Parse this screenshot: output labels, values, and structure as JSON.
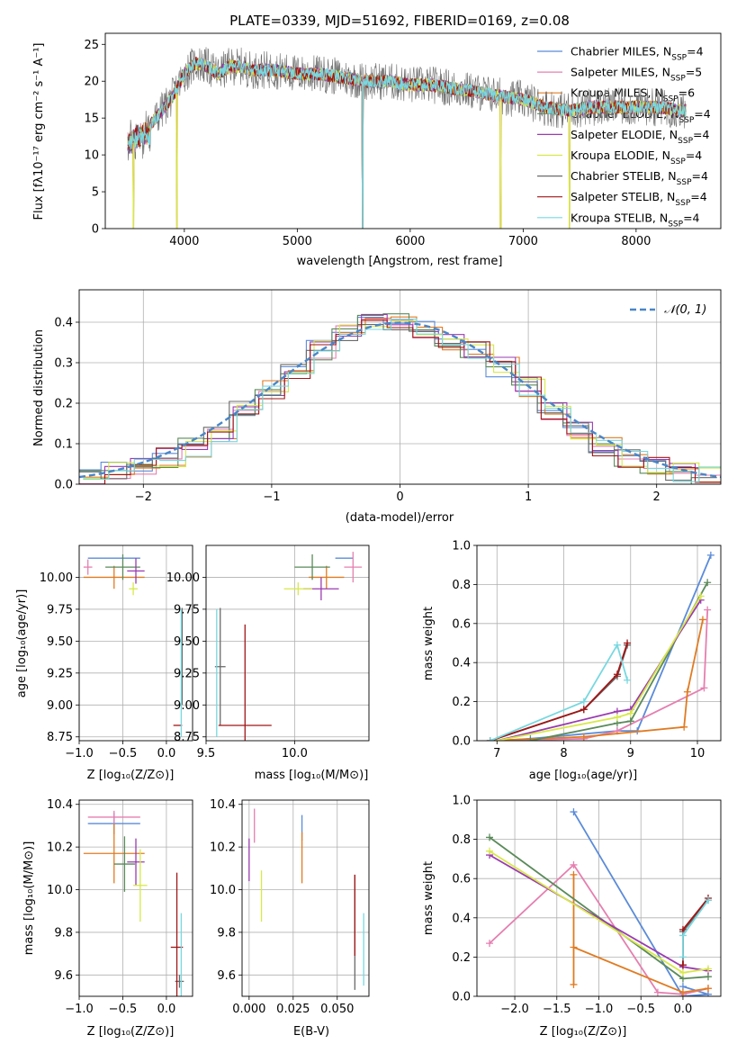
{
  "colors": {
    "chabrier_miles": "#5b8bd9",
    "salpeter_miles": "#e57fb0",
    "kroupa_miles": "#e07b22",
    "chabrier_elodie": "#5a8a5a",
    "salpeter_elodie": "#9a3bb0",
    "kroupa_elodie": "#d7e84a",
    "chabrier_stelib": "#6a6a6a",
    "salpeter_stelib": "#a01616",
    "kroupa_stelib": "#78d8e0",
    "model_mean": "#4a86c8"
  },
  "chart_data": [
    {
      "type": "line",
      "title": "PLATE=0339, MJD=51692, FIBERID=0169, z=0.08",
      "xlabel": "wavelength [Angstrom, rest frame]",
      "ylabel": "Flux [fλ10⁻¹⁷ erg cm⁻² s⁻¹ A⁻¹]",
      "xlim": [
        3300,
        8750
      ],
      "ylim": [
        0,
        26.5
      ],
      "xticks": [
        4000,
        5000,
        6000,
        7000,
        8000
      ],
      "yticks": [
        0,
        5,
        10,
        15,
        20,
        25
      ],
      "grid": false,
      "legend_position": "right",
      "legend": [
        "Chabrier MILES, N_SSP=4",
        "Salpeter MILES, N_SSP=5",
        "Kroupa MILES, N_SSP=6",
        "Chabrier ELODIE, N_SSP=4",
        "Salpeter ELODIE, N_SSP=4",
        "Kroupa ELODIE, N_SSP=4",
        "Chabrier STELIB, N_SSP=4",
        "Salpeter STELIB, N_SSP=4",
        "Kroupa STELIB, N_SSP=4"
      ],
      "spectrum_continuum": {
        "x": [
          3500,
          3600,
          3700,
          3800,
          3900,
          4000,
          4100,
          4200,
          4300,
          4400,
          4500,
          4600,
          4800,
          5000,
          5200,
          5400,
          5600,
          5800,
          6000,
          6200,
          6400,
          6600,
          6800,
          7000,
          7200,
          7400,
          7600,
          7800,
          8000,
          8200,
          8400
        ],
        "y": [
          12.5,
          13.5,
          14.0,
          16.0,
          18.0,
          21.0,
          22.5,
          22.0,
          21.0,
          22.0,
          22.0,
          21.5,
          21.5,
          21.0,
          21.0,
          20.5,
          20.0,
          20.0,
          19.5,
          19.5,
          19.0,
          18.5,
          18.0,
          17.5,
          16.5,
          16.0,
          16.5,
          16.5,
          16.5,
          16.5,
          16.0
        ]
      },
      "absorption_features": [
        {
          "x": 3550,
          "y": 0
        },
        {
          "x": 3935,
          "y": 0
        },
        {
          "x": 5577,
          "y": 0
        },
        {
          "x": 6800,
          "y": 0
        },
        {
          "x": 7410,
          "y": 0
        }
      ]
    },
    {
      "type": "line",
      "title": "",
      "xlabel": "(data-model)/error",
      "ylabel": "Normed distribution",
      "xlim": [
        -2.5,
        2.5
      ],
      "ylim": [
        0,
        0.48
      ],
      "xticks": [
        -2,
        -1,
        0,
        1,
        2
      ],
      "yticks": [
        0.0,
        0.1,
        0.2,
        0.3,
        0.4
      ],
      "grid": true,
      "legend": [
        "𝒩(0, 1)"
      ],
      "legend_position": "top-right",
      "reference_curve": "normal(0,1) density",
      "histograms_step_x": [
        -2.5,
        -2.3,
        -2.1,
        -1.9,
        -1.7,
        -1.5,
        -1.3,
        -1.1,
        -0.9,
        -0.7,
        -0.5,
        -0.3,
        -0.1,
        0.1,
        0.3,
        0.5,
        0.7,
        0.9,
        1.1,
        1.3,
        1.5,
        1.7,
        1.9,
        2.1,
        2.3,
        2.5
      ],
      "histograms_base_y": [
        0.02,
        0.03,
        0.045,
        0.065,
        0.09,
        0.13,
        0.18,
        0.235,
        0.28,
        0.33,
        0.37,
        0.395,
        0.4,
        0.38,
        0.35,
        0.33,
        0.29,
        0.24,
        0.18,
        0.13,
        0.09,
        0.065,
        0.045,
        0.03,
        0.02
      ]
    },
    {
      "type": "scatter",
      "title": "",
      "xlabel": "Z [log₁₀(Z/Z⊙)]",
      "ylabel": "age  [log₁₀(age/yr)]",
      "xlim": [
        -1.0,
        0.3
      ],
      "ylim": [
        8.72,
        10.25
      ],
      "xticks": [
        -1.0,
        -0.5,
        0.0
      ],
      "yticks": [
        8.75,
        9.0,
        9.25,
        9.5,
        9.75,
        10.0
      ],
      "grid": true,
      "points": [
        {
          "series": "chabrier_miles",
          "x": -0.6,
          "xerr": 0.3,
          "y": 10.15,
          "yerr": 0.0
        },
        {
          "series": "salpeter_miles",
          "x": -0.9,
          "xerr": 0.05,
          "y": 10.08,
          "yerr": 0.06
        },
        {
          "series": "kroupa_miles",
          "x": -0.6,
          "xerr": 0.35,
          "y": 10.0,
          "yerr": 0.09
        },
        {
          "series": "chabrier_elodie",
          "x": -0.5,
          "xerr": 0.2,
          "y": 10.08,
          "yerr": 0.1
        },
        {
          "series": "salpeter_elodie",
          "x": -0.35,
          "xerr": 0.1,
          "y": 10.05,
          "yerr": 0.1
        },
        {
          "series": "kroupa_elodie",
          "x": -0.38,
          "xerr": 0.05,
          "y": 9.91,
          "yerr": 0.05
        },
        {
          "series": "chabrier_stelib",
          "x": 0.18,
          "xerr": 0.0,
          "y": 9.38,
          "yerr": 0.38
        },
        {
          "series": "salpeter_stelib",
          "x": 0.13,
          "xerr": 0.05,
          "y": 8.84,
          "yerr": 0.0
        },
        {
          "series": "kroupa_stelib",
          "x": 0.17,
          "xerr": 0.0,
          "y": 9.25,
          "yerr": 0.5
        }
      ]
    },
    {
      "type": "scatter",
      "title": "",
      "xlabel": "mass [log₁₀(M/M⊙)]",
      "ylabel": "",
      "xlim": [
        9.5,
        10.42
      ],
      "ylim": [
        8.72,
        10.25
      ],
      "xticks": [
        9.5,
        10.0
      ],
      "yticks": [
        8.75,
        9.0,
        9.25,
        9.5,
        9.75,
        10.0
      ],
      "grid": true,
      "points": [
        {
          "series": "chabrier_miles",
          "x": 10.28,
          "xerr": 0.05,
          "y": 10.15,
          "yerr": 0.0
        },
        {
          "series": "salpeter_miles",
          "x": 10.33,
          "xerr": 0.05,
          "y": 10.08,
          "yerr": 0.12
        },
        {
          "series": "kroupa_miles",
          "x": 10.18,
          "xerr": 0.1,
          "y": 10.0,
          "yerr": 0.09
        },
        {
          "series": "chabrier_elodie",
          "x": 10.1,
          "xerr": 0.1,
          "y": 10.08,
          "yerr": 0.1
        },
        {
          "series": "salpeter_elodie",
          "x": 10.15,
          "xerr": 0.1,
          "y": 9.91,
          "yerr": 0.09
        },
        {
          "series": "kroupa_elodie",
          "x": 10.02,
          "xerr": 0.08,
          "y": 9.91,
          "yerr": 0.05
        },
        {
          "series": "chabrier_stelib",
          "x": 9.58,
          "xerr": 0.03,
          "y": 9.3,
          "yerr": 0.46
        },
        {
          "series": "salpeter_stelib",
          "x": 9.72,
          "xerr": 0.15,
          "y": 8.84,
          "yerr": 0.79
        },
        {
          "series": "kroupa_stelib",
          "x": 9.56,
          "xerr": 0.0,
          "y": 9.25,
          "yerr": 0.5
        }
      ]
    },
    {
      "type": "line",
      "title": "",
      "xlabel": "age  [log₁₀(age/yr)]",
      "ylabel": "mass weight",
      "xlim": [
        6.7,
        10.35
      ],
      "ylim": [
        0,
        1.0
      ],
      "xticks": [
        7,
        8,
        9,
        10
      ],
      "yticks": [
        0.0,
        0.2,
        0.4,
        0.6,
        0.8,
        1.0
      ],
      "grid": true,
      "series": [
        {
          "series": "chabrier_miles",
          "x": [
            7.0,
            7.5,
            8.8,
            9.1,
            10.2
          ],
          "y": [
            0.0,
            0.01,
            0.05,
            0.05,
            0.95
          ]
        },
        {
          "series": "salpeter_miles",
          "x": [
            7.0,
            8.3,
            8.8,
            10.1,
            10.15
          ],
          "y": [
            0.0,
            0.01,
            0.05,
            0.27,
            0.67
          ]
        },
        {
          "series": "kroupa_miles",
          "x": [
            6.9,
            8.3,
            9.8,
            9.85,
            10.08
          ],
          "y": [
            0.0,
            0.02,
            0.07,
            0.25,
            0.62
          ]
        },
        {
          "series": "chabrier_elodie",
          "x": [
            7.5,
            8.8,
            9.0,
            10.15
          ],
          "y": [
            0.0,
            0.09,
            0.1,
            0.81
          ]
        },
        {
          "series": "salpeter_elodie",
          "x": [
            7.0,
            8.8,
            9.0,
            10.05
          ],
          "y": [
            0.0,
            0.15,
            0.16,
            0.72
          ]
        },
        {
          "series": "kroupa_elodie",
          "x": [
            7.0,
            8.8,
            9.0,
            10.05
          ],
          "y": [
            0.0,
            0.12,
            0.14,
            0.74
          ]
        },
        {
          "series": "chabrier_stelib",
          "x": [
            6.9,
            8.3,
            8.8,
            8.95
          ],
          "y": [
            0.0,
            0.16,
            0.33,
            0.49
          ]
        },
        {
          "series": "salpeter_stelib",
          "x": [
            6.9,
            8.3,
            8.8,
            8.95
          ],
          "y": [
            0.0,
            0.16,
            0.34,
            0.5
          ]
        },
        {
          "series": "kroupa_stelib",
          "x": [
            6.9,
            8.3,
            8.8,
            8.95
          ],
          "y": [
            0.0,
            0.2,
            0.49,
            0.31
          ]
        }
      ]
    },
    {
      "type": "scatter",
      "title": "",
      "xlabel": "Z [log₁₀(Z/Z⊙)]",
      "ylabel": "mass [log₁₀(M/M⊙)]",
      "xlim": [
        -1.0,
        0.3
      ],
      "ylim": [
        9.5,
        10.42
      ],
      "xticks": [
        -1.0,
        -0.5,
        0.0
      ],
      "yticks": [
        9.6,
        9.8,
        10.0,
        10.2,
        10.4
      ],
      "grid": true,
      "points": [
        {
          "series": "chabrier_miles",
          "x": -0.6,
          "xerr": 0.3,
          "y": 10.31,
          "yerr": 0.05
        },
        {
          "series": "salpeter_miles",
          "x": -0.6,
          "xerr": 0.3,
          "y": 10.34,
          "yerr": 0.03
        },
        {
          "series": "kroupa_miles",
          "x": -0.6,
          "xerr": 0.35,
          "y": 10.17,
          "yerr": 0.14
        },
        {
          "series": "chabrier_elodie",
          "x": -0.48,
          "xerr": 0.12,
          "y": 10.12,
          "yerr": 0.13
        },
        {
          "series": "salpeter_elodie",
          "x": -0.35,
          "xerr": 0.1,
          "y": 10.13,
          "yerr": 0.11
        },
        {
          "series": "kroupa_elodie",
          "x": -0.3,
          "xerr": 0.08,
          "y": 10.02,
          "yerr": 0.17
        },
        {
          "series": "chabrier_stelib",
          "x": 0.15,
          "xerr": 0.05,
          "y": 9.57,
          "yerr": 0.03
        },
        {
          "series": "salpeter_stelib",
          "x": 0.12,
          "xerr": 0.07,
          "y": 9.73,
          "yerr": 0.35
        },
        {
          "series": "kroupa_stelib",
          "x": 0.17,
          "xerr": 0.0,
          "y": 9.55,
          "yerr": 0.34
        }
      ]
    },
    {
      "type": "scatter",
      "title": "",
      "xlabel": "E(B-V)",
      "ylabel": "",
      "xlim": [
        -0.004,
        0.068
      ],
      "ylim": [
        9.5,
        10.42
      ],
      "xticks": [
        0.0,
        0.025,
        0.05
      ],
      "yticks": [
        9.6,
        9.8,
        10.0,
        10.2,
        10.4
      ],
      "grid": true,
      "points": [
        {
          "series": "chabrier_miles",
          "x": 0.03,
          "xerr": 0.0,
          "y": 10.29,
          "yerr": 0.06
        },
        {
          "series": "salpeter_miles",
          "x": 0.003,
          "xerr": 0.0,
          "y": 10.3,
          "yerr": 0.08
        },
        {
          "series": "kroupa_miles",
          "x": 0.03,
          "xerr": 0.0,
          "y": 10.15,
          "yerr": 0.12
        },
        {
          "series": "salpeter_elodie",
          "x": 0.0,
          "xerr": 0.0,
          "y": 10.14,
          "yerr": 0.1
        },
        {
          "series": "kroupa_elodie",
          "x": 0.007,
          "xerr": 0.0,
          "y": 9.97,
          "yerr": 0.12
        },
        {
          "series": "chabrier_stelib",
          "x": 0.06,
          "xerr": 0.0,
          "y": 9.8,
          "yerr": 0.27
        },
        {
          "series": "salpeter_stelib",
          "x": 0.06,
          "xerr": 0.0,
          "y": 9.88,
          "yerr": 0.19
        },
        {
          "series": "kroupa_stelib",
          "x": 0.065,
          "xerr": 0.0,
          "y": 9.72,
          "yerr": 0.17
        }
      ]
    },
    {
      "type": "line",
      "title": "",
      "xlabel": "Z [log₁₀(Z/Z⊙)]",
      "ylabel": "mass weight",
      "xlim": [
        -2.45,
        0.45
      ],
      "ylim": [
        0,
        1.0
      ],
      "xticks": [
        -2.0,
        -1.5,
        -1.0,
        -0.5,
        0.0
      ],
      "yticks": [
        0.0,
        0.2,
        0.4,
        0.6,
        0.8,
        1.0
      ],
      "grid": true,
      "series": [
        {
          "series": "chabrier_miles",
          "x": [
            -1.3,
            0.0,
            0.3,
            0.0
          ],
          "y": [
            0.94,
            0.0,
            0.01,
            0.05
          ]
        },
        {
          "series": "salpeter_miles",
          "x": [
            -2.3,
            -1.3,
            -0.3,
            0.0,
            0.3
          ],
          "y": [
            0.27,
            0.67,
            0.02,
            0.01,
            0.04
          ]
        },
        {
          "series": "kroupa_miles",
          "x": [
            -1.3,
            -1.3,
            -1.3,
            0.0,
            0.3
          ],
          "y": [
            0.62,
            0.06,
            0.25,
            0.02,
            0.04
          ]
        },
        {
          "series": "chabrier_elodie",
          "x": [
            -2.3,
            0.0,
            0.3
          ],
          "y": [
            0.81,
            0.09,
            0.1
          ]
        },
        {
          "series": "salpeter_elodie",
          "x": [
            -2.3,
            0.0,
            0.3
          ],
          "y": [
            0.72,
            0.15,
            0.13
          ]
        },
        {
          "series": "kroupa_elodie",
          "x": [
            -2.3,
            0.0,
            0.3
          ],
          "y": [
            0.74,
            0.12,
            0.14
          ]
        },
        {
          "series": "chabrier_stelib",
          "x": [
            0.0,
            0.0,
            0.3
          ],
          "y": [
            0.16,
            0.33,
            0.49
          ]
        },
        {
          "series": "salpeter_stelib",
          "x": [
            0.0,
            0.0,
            0.3
          ],
          "y": [
            0.16,
            0.34,
            0.5
          ]
        },
        {
          "series": "kroupa_stelib",
          "x": [
            0.0,
            0.0,
            0.3
          ],
          "y": [
            0.2,
            0.31,
            0.49
          ]
        }
      ]
    }
  ]
}
